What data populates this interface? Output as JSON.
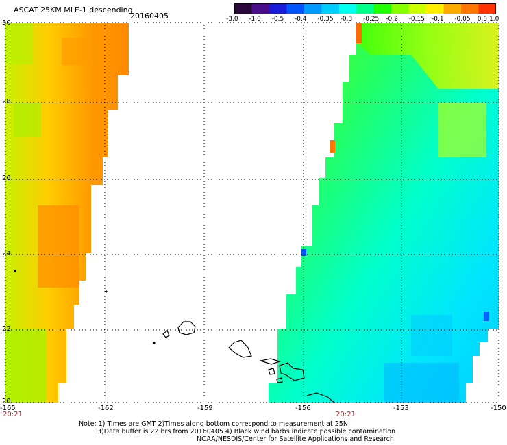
{
  "header": {
    "title": "ASCAT 25KM MLE-1 descending",
    "date": "20160405"
  },
  "colorbar": {
    "labels": [
      "-3.0",
      "-1.0",
      "-0.5",
      "-0.4",
      "-0.35",
      "-0.3",
      "-0.25",
      "-0.2",
      "-0.15",
      "-0.1",
      "-0.05",
      "0.0",
      "1.0"
    ],
    "colors": [
      "#2a0a3a",
      "#4a0d8c",
      "#1a1ad8",
      "#0055ff",
      "#0099ff",
      "#00ccff",
      "#00ffee",
      "#00ff88",
      "#22ff00",
      "#88ff00",
      "#ccff00",
      "#ffee00",
      "#ffaa00",
      "#ff7700",
      "#ff3300"
    ]
  },
  "map": {
    "lat_labels": [
      "30",
      "28",
      "26",
      "24",
      "22",
      "20"
    ],
    "lon_labels": [
      "-165",
      "-162",
      "-159",
      "-156",
      "-153",
      "-150"
    ],
    "time_labels": [
      "20:21",
      "20:21"
    ],
    "land_color": "#000000",
    "grid": "dotted"
  },
  "notes": {
    "line1": "Note: 1) Times are GMT 2)Times along bottom correspond to measurement at 25N",
    "line2": "3)Data buffer is 22 hrs from 20160405 4) Black wind barbs indicate possible contamination",
    "line3": "NOAA/NESDIS/Center for Satellite Applications and Research"
  }
}
